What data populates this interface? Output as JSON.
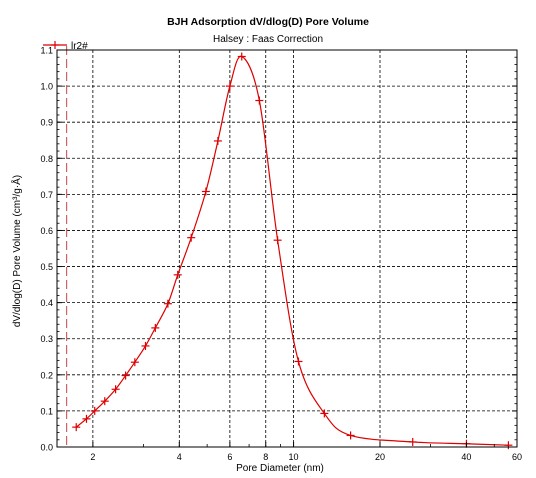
{
  "chart_data": {
    "type": "line",
    "title": "BJH Adsorption dV/dlog(D) Pore Volume",
    "subtitle": "Halsey : Faas Correction",
    "xlabel": "Pore Diameter (nm)",
    "ylabel": "dV/dlog(D) Pore Volume (cm³/g·Å)",
    "xscale": "log",
    "xlim": [
      1.5,
      60
    ],
    "ylim": [
      0,
      1.1
    ],
    "x_ticks": [
      2,
      4,
      6,
      8,
      10,
      20,
      40,
      60
    ],
    "x_minor_ticks": [
      3,
      5,
      7,
      9,
      30,
      50
    ],
    "y_ticks": [
      0.0,
      0.1,
      0.2,
      0.3,
      0.4,
      0.5,
      0.6,
      0.7,
      0.8,
      0.9,
      1.0,
      1.1
    ],
    "y_tick_labels": [
      "0.0",
      "0.1",
      "0.2",
      "0.3",
      "0.4",
      "0.5",
      "0.6",
      "0.7",
      "0.8",
      "0.9",
      "1.0",
      "1.1"
    ],
    "grid": true,
    "legend": "top-left",
    "series": [
      {
        "name": "lr2#",
        "color": "#dd0000",
        "marker": "plus",
        "x": [
          1.75,
          1.9,
          2.03,
          2.2,
          2.4,
          2.6,
          2.8,
          3.05,
          3.3,
          3.65,
          3.95,
          4.4,
          4.95,
          5.45,
          6.0,
          6.6,
          7.6,
          8.8,
          10.4,
          12.8,
          15.8,
          26.0,
          40.0,
          56.0
        ],
        "y": [
          0.055,
          0.078,
          0.1,
          0.127,
          0.16,
          0.198,
          0.235,
          0.28,
          0.33,
          0.397,
          0.477,
          0.58,
          0.708,
          0.848,
          1.0,
          1.082,
          0.96,
          0.573,
          0.237,
          0.093,
          0.032,
          0.014,
          0.009,
          0.005
        ]
      }
    ],
    "reference_line": {
      "x": 1.62,
      "style": "dashed",
      "color": "#cc6666"
    }
  }
}
